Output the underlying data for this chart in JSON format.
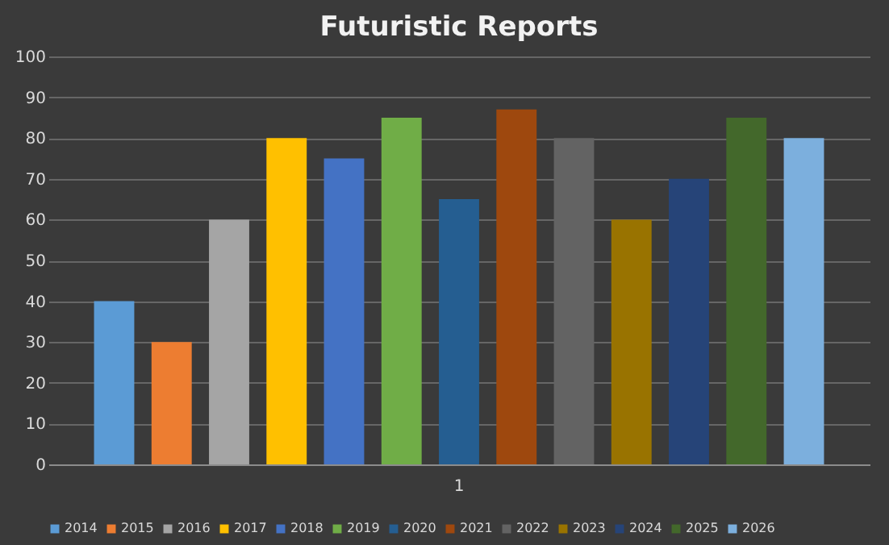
{
  "chart_data": {
    "type": "bar",
    "title": "Futuristic  Reports",
    "categories": [
      "1"
    ],
    "series": [
      {
        "name": "2014",
        "color": "#5b9bd5",
        "values": [
          40
        ]
      },
      {
        "name": "2015",
        "color": "#ed7d31",
        "values": [
          30
        ]
      },
      {
        "name": "2016",
        "color": "#a5a5a5",
        "values": [
          60
        ]
      },
      {
        "name": "2017",
        "color": "#ffc000",
        "values": [
          80
        ]
      },
      {
        "name": "2018",
        "color": "#4472c4",
        "values": [
          75
        ]
      },
      {
        "name": "2019",
        "color": "#70ad47",
        "values": [
          85
        ]
      },
      {
        "name": "2020",
        "color": "#255e91",
        "values": [
          65
        ]
      },
      {
        "name": "2021",
        "color": "#9e480e",
        "values": [
          87
        ]
      },
      {
        "name": "2022",
        "color": "#636363",
        "values": [
          80
        ]
      },
      {
        "name": "2023",
        "color": "#997300",
        "values": [
          60
        ]
      },
      {
        "name": "2024",
        "color": "#264478",
        "values": [
          70
        ]
      },
      {
        "name": "2025",
        "color": "#43682b",
        "values": [
          85
        ]
      },
      {
        "name": "2026",
        "color": "#7cafdd",
        "values": [
          80
        ]
      }
    ],
    "ylim": [
      0,
      100
    ],
    "yticks": [
      0,
      10,
      20,
      30,
      40,
      50,
      60,
      70,
      80,
      90,
      100
    ],
    "grid": "y",
    "legend": "bottom"
  }
}
